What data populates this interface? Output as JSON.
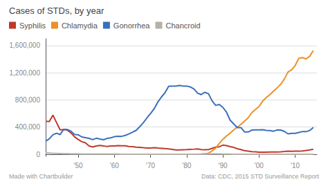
{
  "chart_data": {
    "type": "line",
    "title": "Cases of STDs, by year",
    "annotations": [
      "Made with Chartbuilder",
      "Data: CDC, 2015 STD Surveillance Report"
    ],
    "xlim": [
      1941,
      2016
    ],
    "xticks": [
      {
        "value": 1950,
        "label": "'50"
      },
      {
        "value": 1960,
        "label": "'60"
      },
      {
        "value": 1970,
        "label": "'70"
      },
      {
        "value": 1980,
        "label": "'80"
      },
      {
        "value": 1990,
        "label": "'90"
      },
      {
        "value": 2000,
        "label": "'00"
      },
      {
        "value": 2010,
        "label": "'10"
      }
    ],
    "ylim": [
      -30000,
      1700000
    ],
    "yticks": [
      0,
      {
        "value": 400000,
        "label": "400,000"
      },
      {
        "value": 800000,
        "label": "800,000"
      },
      {
        "value": 1200000,
        "label": "1,200,000"
      },
      {
        "value": 1600000,
        "label": "1,600,000"
      }
    ],
    "grid": true,
    "legend": "top",
    "series": [
      {
        "name": "Syphilis",
        "color": "#c0392b",
        "x": [
          1941,
          1942,
          1943,
          1944,
          1945,
          1946,
          1947,
          1948,
          1949,
          1950,
          1951,
          1952,
          1953,
          1954,
          1955,
          1956,
          1957,
          1958,
          1959,
          1960,
          1961,
          1962,
          1963,
          1964,
          1965,
          1966,
          1967,
          1968,
          1969,
          1970,
          1971,
          1972,
          1973,
          1974,
          1975,
          1976,
          1977,
          1978,
          1979,
          1980,
          1981,
          1982,
          1983,
          1984,
          1985,
          1986,
          1987,
          1988,
          1989,
          1990,
          1991,
          1992,
          1993,
          1994,
          1995,
          1996,
          1997,
          1998,
          1999,
          2000,
          2001,
          2002,
          2003,
          2004,
          2005,
          2006,
          2007,
          2008,
          2009,
          2010,
          2011,
          2012,
          2013,
          2014,
          2015
        ],
        "values": [
          485560,
          480430,
          575593,
          467755,
          359114,
          363647,
          355592,
          314313,
          256501,
          217558,
          185461,
          168006,
          122392,
          106825,
          122392,
          130000,
          123832,
          113884,
          122000,
          122538,
          128728,
          126245,
          124658,
          114325,
          112842,
          105159,
          102581,
          96271,
          92162,
          91382,
          95997,
          91149,
          87469,
          83771,
          80356,
          72799,
          64621,
          64621,
          67049,
          68832,
          72799,
          75579,
          78822,
          69888,
          67559,
          67959,
          87286,
          104342,
          110771,
          134255,
          128569,
          112581,
          101263,
          81696,
          68953,
          52995,
          46540,
          37977,
          35628,
          31618,
          31575,
          32221,
          34270,
          33401,
          33278,
          36532,
          40920,
          46277,
          44828,
          45844,
          46042,
          49903,
          56471,
          63450,
          74702
        ]
      },
      {
        "name": "Chlamydia",
        "color": "#e8922a",
        "x": [
          1984,
          1985,
          1986,
          1987,
          1988,
          1989,
          1990,
          1991,
          1992,
          1993,
          1994,
          1995,
          1996,
          1997,
          1998,
          1999,
          2000,
          2001,
          2002,
          2003,
          2004,
          2005,
          2006,
          2007,
          2008,
          2009,
          2010,
          2011,
          2012,
          2013,
          2014,
          2015
        ],
        "values": [
          3000,
          7000,
          15000,
          50000,
          90000,
          160000,
          220000,
          270000,
          310000,
          360000,
          400000,
          440000,
          490000,
          537000,
          614000,
          659000,
          702093,
          783242,
          834555,
          877478,
          929462,
          976445,
          1030911,
          1108374,
          1210523,
          1244180,
          1307893,
          1412791,
          1422976,
          1401906,
          1441789,
          1526658
        ]
      },
      {
        "name": "Gonorrhea",
        "color": "#3a6fba",
        "x": [
          1941,
          1942,
          1943,
          1944,
          1945,
          1946,
          1947,
          1948,
          1949,
          1950,
          1951,
          1952,
          1953,
          1954,
          1955,
          1956,
          1957,
          1958,
          1959,
          1960,
          1961,
          1962,
          1963,
          1964,
          1965,
          1966,
          1967,
          1968,
          1969,
          1970,
          1971,
          1972,
          1973,
          1974,
          1975,
          1976,
          1977,
          1978,
          1979,
          1980,
          1981,
          1982,
          1983,
          1984,
          1985,
          1986,
          1987,
          1988,
          1989,
          1990,
          1991,
          1992,
          1993,
          1994,
          1995,
          1996,
          1997,
          1998,
          1999,
          2000,
          2001,
          2002,
          2003,
          2004,
          2005,
          2006,
          2007,
          2008,
          2009,
          2010,
          2011,
          2012,
          2013,
          2014,
          2015
        ],
        "values": [
          193468,
          228000,
          286000,
          310000,
          290000,
          368000,
          364000,
          340000,
          290000,
          286746,
          255048,
          243987,
          234811,
          215014,
          236197,
          224361,
          214496,
          233923,
          241620,
          258933,
          264158,
          263714,
          278270,
          300060,
          324925,
          351738,
          404479,
          464543,
          534872,
          600072,
          670268,
          767014,
          842621,
          906121,
          999937,
          1001994,
          1002219,
          1013436,
          1004029,
          1004058,
          990864,
          960087,
          900435,
          878556,
          911419,
          892229,
          787532,
          719536,
          733151,
          690169,
          620478,
          501409,
          445820,
          392848,
          392661,
          328169,
          327665,
          355567,
          360076,
          358995,
          361705,
          351852,
          348507,
          339593,
          358366,
          356268,
          336742,
          301174,
          309341,
          309341,
          321566,
          334826,
          333004,
          350062,
          395216
        ]
      },
      {
        "name": "Chancroid",
        "color": "#b5b0a8",
        "x": [
          1941,
          1942,
          1943,
          1944,
          1945,
          1946,
          1947,
          1948,
          1949,
          1950,
          1951,
          1952,
          1953,
          1954,
          1955,
          1956,
          1957,
          1958,
          1959,
          1960,
          1961,
          1962,
          1963,
          1964,
          1965,
          1966,
          1967,
          1968,
          1969,
          1970,
          1971,
          1972,
          1973,
          1974,
          1975,
          1976,
          1977,
          1978,
          1979,
          1980,
          1981,
          1982,
          1983,
          1984,
          1985,
          1986,
          1987,
          1988,
          1989,
          1990,
          1991,
          1992,
          1993,
          1994,
          1995,
          1996,
          1997,
          1998,
          1999,
          2000,
          2001,
          2002,
          2003,
          2004,
          2005,
          2006,
          2007,
          2008,
          2009,
          2010,
          2011,
          2012,
          2013,
          2014,
          2015
        ],
        "values": [
          20000,
          18000,
          14000,
          12000,
          10000,
          8000,
          7000,
          6000,
          5500,
          4958,
          4241,
          3573,
          3154,
          2871,
          2623,
          2480,
          2350,
          2200,
          2050,
          1950,
          1840,
          1720,
          1580,
          1430,
          1300,
          1200,
          1100,
          1050,
          1000,
          1416,
          1540,
          1760,
          1800,
          1707,
          1499,
          1388,
          1286,
          1118,
          998,
          788,
          851,
          1217,
          1739,
          2067,
          2756,
          3418,
          5035,
          4822,
          5009,
          4212,
          3476,
          1886,
          1191,
          773,
          607,
          386,
          243,
          189,
          189,
          143,
          38,
          30,
          67,
          54,
          30,
          23,
          33,
          33,
          47,
          24,
          47,
          15,
          15,
          11,
          6
        ]
      }
    ]
  }
}
